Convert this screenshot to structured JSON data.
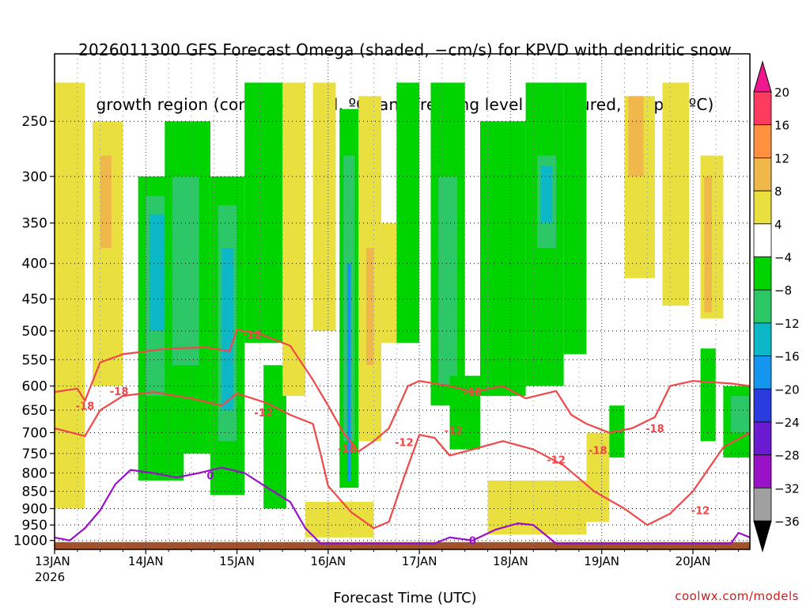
{
  "chart_data": {
    "type": "heatmap",
    "title_lines": [
      "2026011300 GFS Forecast Omega (shaded, −cm/s) for KPVD with dendritic snow",
      "growth region (contoured, red, ºC) and freezing level (contoured, purple, ºC)"
    ],
    "xlabel": "Forecast Time (UTC)",
    "credit": "coolwx.com/models",
    "x_ticks": [
      {
        "label": "13JAN",
        "sub": "2026",
        "hour": 0
      },
      {
        "label": "14JAN",
        "hour": 24
      },
      {
        "label": "15JAN",
        "hour": 48
      },
      {
        "label": "16JAN",
        "hour": 72
      },
      {
        "label": "17JAN",
        "hour": 96
      },
      {
        "label": "18JAN",
        "hour": 120
      },
      {
        "label": "19JAN",
        "hour": 144
      },
      {
        "label": "20JAN",
        "hour": 168
      }
    ],
    "x_range_hours": [
      0,
      183
    ],
    "y_axis": "pressure (hPa), log scale, reversed",
    "y_ticks": [
      250,
      300,
      350,
      400,
      450,
      500,
      550,
      600,
      650,
      700,
      750,
      800,
      850,
      900,
      950,
      1000
    ],
    "ylim": [
      200,
      1030
    ],
    "grid": true,
    "colorbar": {
      "labels": [
        "20",
        "16",
        "12",
        "8",
        "4",
        "−4",
        "−8",
        "−12",
        "−16",
        "−20",
        "−24",
        "−28",
        "−32",
        "−36"
      ],
      "colors": [
        "#ff3b5f",
        "#ff9040",
        "#f0b84a",
        "#e9e040",
        "#ffffff",
        "#00d400",
        "#2cc868",
        "#0cb8c8",
        "#1496ee",
        "#2a3cde",
        "#6a1ad0",
        "#9a12c8",
        "#a0a0a0"
      ],
      "top_arrow_color": "#f01890",
      "bottom_arrow_color": "#000000"
    },
    "contour_labels_red": [
      "-18",
      "-12",
      "-18",
      "-12",
      "-12",
      "-18",
      "-12",
      "-18",
      "-12",
      "-18",
      "-18",
      "-12"
    ],
    "contour_labels_purple": [
      "0",
      "0"
    ],
    "dgz_upper_hpa": [
      [
        0,
        612
      ],
      [
        6,
        605
      ],
      [
        8,
        630
      ],
      [
        12,
        555
      ],
      [
        18,
        540
      ],
      [
        30,
        530
      ],
      [
        40,
        528
      ],
      [
        46,
        535
      ],
      [
        48,
        498
      ],
      [
        54,
        505
      ],
      [
        62,
        525
      ],
      [
        68,
        588
      ],
      [
        72,
        640
      ],
      [
        76,
        700
      ],
      [
        80,
        745
      ],
      [
        84,
        720
      ],
      [
        88,
        690
      ],
      [
        93,
        600
      ],
      [
        96,
        590
      ],
      [
        104,
        600
      ],
      [
        110,
        612
      ],
      [
        118,
        600
      ],
      [
        124,
        625
      ],
      [
        132,
        610
      ],
      [
        136,
        660
      ],
      [
        140,
        680
      ],
      [
        146,
        700
      ],
      [
        152,
        690
      ],
      [
        158,
        665
      ],
      [
        162,
        600
      ],
      [
        168,
        590
      ],
      [
        178,
        595
      ],
      [
        183,
        600
      ]
    ],
    "dgz_lower_hpa": [
      [
        0,
        690
      ],
      [
        8,
        708
      ],
      [
        12,
        650
      ],
      [
        18,
        620
      ],
      [
        26,
        612
      ],
      [
        36,
        625
      ],
      [
        44,
        640
      ],
      [
        48,
        615
      ],
      [
        56,
        635
      ],
      [
        62,
        660
      ],
      [
        68,
        680
      ],
      [
        70,
        750
      ],
      [
        72,
        835
      ],
      [
        78,
        910
      ],
      [
        84,
        960
      ],
      [
        88,
        940
      ],
      [
        92,
        810
      ],
      [
        96,
        705
      ],
      [
        100,
        712
      ],
      [
        104,
        755
      ],
      [
        110,
        740
      ],
      [
        118,
        720
      ],
      [
        126,
        740
      ],
      [
        134,
        780
      ],
      [
        142,
        850
      ],
      [
        150,
        900
      ],
      [
        156,
        950
      ],
      [
        162,
        915
      ],
      [
        168,
        850
      ],
      [
        176,
        735
      ],
      [
        183,
        700
      ]
    ],
    "freezing_level_hpa": [
      [
        0,
        990
      ],
      [
        4,
        1000
      ],
      [
        8,
        960
      ],
      [
        12,
        905
      ],
      [
        16,
        830
      ],
      [
        20,
        792
      ],
      [
        26,
        800
      ],
      [
        32,
        812
      ],
      [
        38,
        800
      ],
      [
        44,
        786
      ],
      [
        50,
        800
      ],
      [
        56,
        840
      ],
      [
        62,
        880
      ],
      [
        66,
        960
      ],
      [
        70,
        1010
      ],
      [
        100,
        1010
      ],
      [
        104,
        990
      ],
      [
        110,
        1000
      ],
      [
        116,
        965
      ],
      [
        122,
        945
      ],
      [
        126,
        950
      ],
      [
        132,
        1010
      ],
      [
        178,
        1010
      ],
      [
        180,
        975
      ],
      [
        183,
        990
      ]
    ],
    "regions": [
      {
        "h0": 22,
        "h1": 34,
        "p0": 300,
        "p1": 820,
        "color": "#00d400"
      },
      {
        "h0": 24,
        "h1": 32,
        "p0": 320,
        "p1": 620,
        "color": "#2cc868"
      },
      {
        "h0": 25,
        "h1": 30,
        "p0": 340,
        "p1": 500,
        "color": "#0cb8c8"
      },
      {
        "h0": 29,
        "h1": 41,
        "p0": 250,
        "p1": 750,
        "color": "#00d400"
      },
      {
        "h0": 31,
        "h1": 38,
        "p0": 300,
        "p1": 560,
        "color": "#2cc868"
      },
      {
        "h0": 41,
        "h1": 50,
        "p0": 300,
        "p1": 860,
        "color": "#00d400"
      },
      {
        "h0": 43,
        "h1": 48,
        "p0": 330,
        "p1": 720,
        "color": "#2cc868"
      },
      {
        "h0": 44,
        "h1": 47,
        "p0": 380,
        "p1": 650,
        "color": "#0cb8c8"
      },
      {
        "h0": 50,
        "h1": 60,
        "p0": 220,
        "p1": 520,
        "color": "#00d400"
      },
      {
        "h0": 55,
        "h1": 61,
        "p0": 560,
        "p1": 900,
        "color": "#00d400"
      },
      {
        "h0": 75,
        "h1": 80,
        "p0": 240,
        "p1": 840,
        "color": "#00d400"
      },
      {
        "h0": 76,
        "h1": 79,
        "p0": 280,
        "p1": 720,
        "color": "#2cc868"
      },
      {
        "h0": 77,
        "h1": 78,
        "p0": 400,
        "p1": 820,
        "color": "#1496ee"
      },
      {
        "h0": 90,
        "h1": 96,
        "p0": 220,
        "p1": 520,
        "color": "#00d400"
      },
      {
        "h0": 99,
        "h1": 108,
        "p0": 220,
        "p1": 640,
        "color": "#00d400"
      },
      {
        "h0": 101,
        "h1": 106,
        "p0": 300,
        "p1": 600,
        "color": "#2cc868"
      },
      {
        "h0": 104,
        "h1": 112,
        "p0": 580,
        "p1": 740,
        "color": "#00d400"
      },
      {
        "h0": 112,
        "h1": 124,
        "p0": 250,
        "p1": 620,
        "color": "#00d400"
      },
      {
        "h0": 124,
        "h1": 134,
        "p0": 220,
        "p1": 600,
        "color": "#00d400"
      },
      {
        "h0": 127,
        "h1": 132,
        "p0": 280,
        "p1": 380,
        "color": "#2cc868"
      },
      {
        "h0": 128,
        "h1": 131,
        "p0": 290,
        "p1": 350,
        "color": "#0cb8c8"
      },
      {
        "h0": 134,
        "h1": 140,
        "p0": 220,
        "p1": 540,
        "color": "#00d400"
      },
      {
        "h0": 146,
        "h1": 150,
        "p0": 640,
        "p1": 760,
        "color": "#00d400"
      },
      {
        "h0": 170,
        "h1": 174,
        "p0": 530,
        "p1": 720,
        "color": "#00d400"
      },
      {
        "h0": 176,
        "h1": 183,
        "p0": 600,
        "p1": 760,
        "color": "#00d400"
      },
      {
        "h0": 178,
        "h1": 183,
        "p0": 620,
        "p1": 700,
        "color": "#2cc868"
      },
      {
        "h0": 0,
        "h1": 8,
        "p0": 220,
        "p1": 900,
        "color": "#e9e040"
      },
      {
        "h0": 10,
        "h1": 18,
        "p0": 250,
        "p1": 600,
        "color": "#e9e040"
      },
      {
        "h0": 12,
        "h1": 15,
        "p0": 280,
        "p1": 380,
        "color": "#f0b84a"
      },
      {
        "h0": 60,
        "h1": 66,
        "p0": 220,
        "p1": 620,
        "color": "#e9e040"
      },
      {
        "h0": 68,
        "h1": 74,
        "p0": 220,
        "p1": 500,
        "color": "#e9e040"
      },
      {
        "h0": 80,
        "h1": 86,
        "p0": 230,
        "p1": 720,
        "color": "#e9e040"
      },
      {
        "h0": 82,
        "h1": 84,
        "p0": 380,
        "p1": 560,
        "color": "#f0b84a"
      },
      {
        "h0": 86,
        "h1": 90,
        "p0": 350,
        "p1": 520,
        "color": "#e9e040"
      },
      {
        "h0": 140,
        "h1": 146,
        "p0": 700,
        "p1": 940,
        "color": "#e9e040"
      },
      {
        "h0": 150,
        "h1": 158,
        "p0": 230,
        "p1": 420,
        "color": "#e9e040"
      },
      {
        "h0": 151,
        "h1": 155,
        "p0": 230,
        "p1": 300,
        "color": "#f0b84a"
      },
      {
        "h0": 160,
        "h1": 167,
        "p0": 220,
        "p1": 460,
        "color": "#e9e040"
      },
      {
        "h0": 170,
        "h1": 176,
        "p0": 280,
        "p1": 480,
        "color": "#e9e040"
      },
      {
        "h0": 171,
        "h1": 173,
        "p0": 300,
        "p1": 470,
        "color": "#f0b84a"
      },
      {
        "h0": 66,
        "h1": 84,
        "p0": 880,
        "p1": 990,
        "color": "#e9e040"
      },
      {
        "h0": 114,
        "h1": 140,
        "p0": 820,
        "p1": 980,
        "color": "#e9e040"
      }
    ],
    "ground_color": "#a0522d"
  }
}
